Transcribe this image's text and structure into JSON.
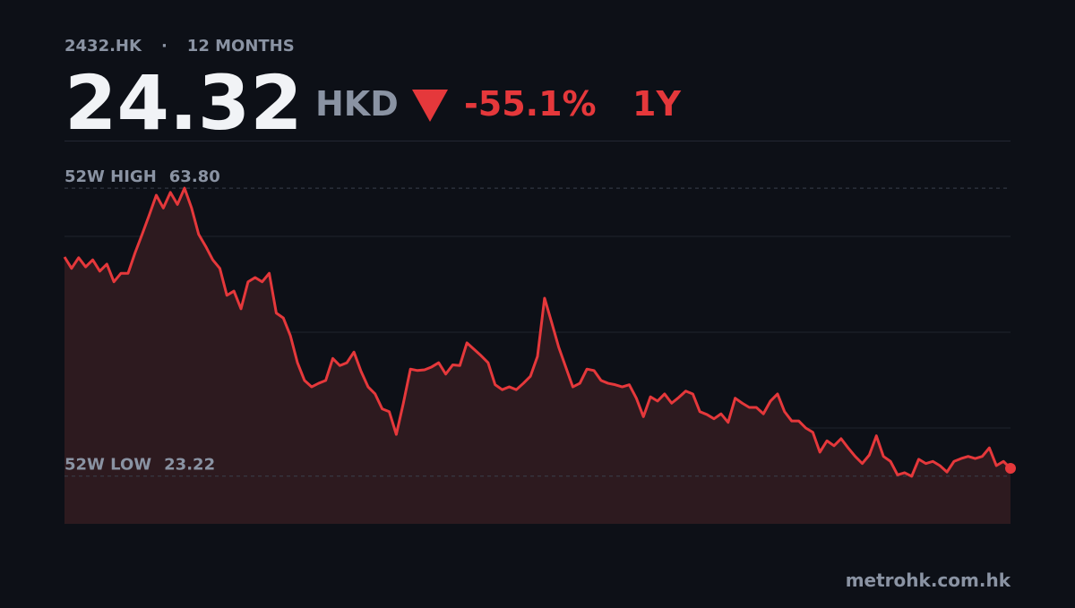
{
  "chart_data": {
    "type": "line",
    "ticker": "2432.HK",
    "separator": "·",
    "period": "12 MONTHS",
    "price": 24.32,
    "currency": "HKD",
    "change": {
      "value": -55.1,
      "label": "-55.1%"
    },
    "range_label": "1Y",
    "source": "metrohk.com.hk",
    "color": "#e5383b",
    "fill_color": "#2d1a1f",
    "ylim": [
      16.5,
      70.5
    ],
    "yticks": [
      30,
      43.5,
      57
    ],
    "grid": true,
    "reference_lines": [
      {
        "name": "52W HIGH",
        "value": 63.8,
        "label": "63.80"
      },
      {
        "name": "52W LOW",
        "value": 23.22,
        "label": "23.22"
      }
    ],
    "values": [
      54.1,
      52.5,
      54.0,
      52.7,
      53.7,
      52.1,
      53.1,
      50.6,
      51.8,
      51.8,
      54.7,
      57.3,
      60.0,
      62.8,
      61.0,
      63.2,
      61.5,
      63.8,
      61.0,
      57.3,
      55.6,
      53.7,
      52.5,
      48.7,
      49.3,
      46.8,
      50.6,
      51.2,
      50.6,
      51.8,
      46.2,
      45.5,
      43.0,
      39.2,
      36.7,
      35.8,
      36.3,
      36.7,
      39.8,
      38.8,
      39.2,
      40.7,
      38.0,
      35.8,
      34.8,
      32.7,
      32.3,
      29.1,
      33.5,
      38.3,
      38.1,
      38.2,
      38.6,
      39.2,
      37.6,
      38.9,
      38.8,
      42.0,
      41.1,
      40.2,
      39.2,
      36.1,
      35.4,
      35.8,
      35.4,
      36.3,
      37.3,
      40.1,
      48.3,
      44.9,
      41.4,
      38.6,
      35.8,
      36.3,
      38.3,
      38.1,
      36.7,
      36.3,
      36.1,
      35.8,
      36.1,
      34.2,
      31.6,
      34.4,
      33.8,
      34.8,
      33.5,
      34.3,
      35.2,
      34.8,
      32.3,
      31.9,
      31.3,
      32.0,
      30.8,
      34.2,
      33.5,
      32.9,
      32.9,
      32.0,
      33.8,
      34.8,
      32.3,
      31.0,
      31.0,
      30.0,
      29.4,
      26.6,
      28.2,
      27.5,
      28.5,
      27.2,
      26.0,
      25.0,
      26.2,
      28.9,
      26.0,
      25.3,
      23.4,
      23.7,
      23.2,
      25.6,
      25.0,
      25.3,
      24.7,
      23.8,
      25.3,
      25.7,
      26.0,
      25.7,
      26.0,
      27.2,
      24.7,
      25.3,
      24.32
    ]
  }
}
